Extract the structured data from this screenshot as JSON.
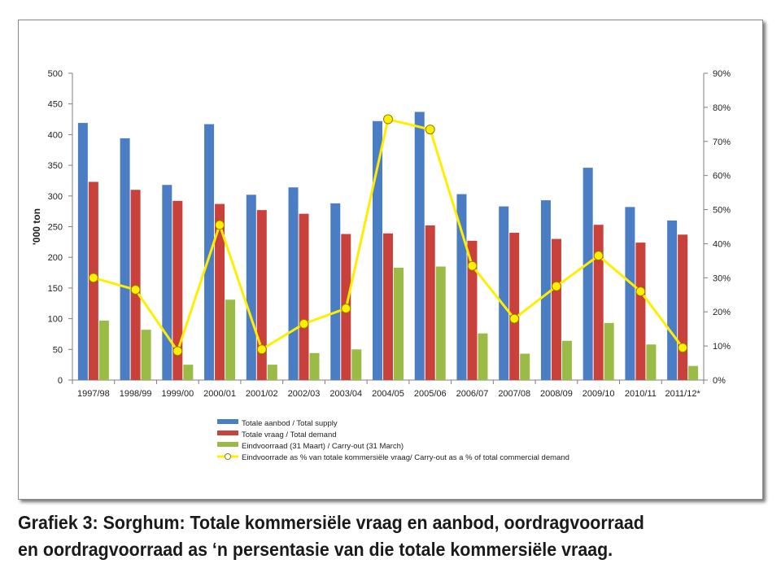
{
  "chart_data": {
    "type": "bar",
    "categories": [
      "1997/98",
      "1998/99",
      "1999/00",
      "2000/01",
      "2001/02",
      "2002/03",
      "2003/04",
      "2004/05",
      "2005/06",
      "2006/07",
      "2007/08",
      "2008/09",
      "2009/10",
      "2010/11",
      "2011/12*"
    ],
    "series": [
      {
        "name": "Totale  aanbod / Total supply",
        "kind": "bar",
        "axis": "left",
        "color": "#4a7dc3",
        "values": [
          419,
          394,
          318,
          417,
          302,
          314,
          288,
          422,
          437,
          303,
          283,
          293,
          346,
          282,
          260
        ]
      },
      {
        "name": "Totale vraag / Total  demand",
        "kind": "bar",
        "axis": "left",
        "color": "#c8413a",
        "values": [
          323,
          310,
          292,
          287,
          277,
          271,
          238,
          239,
          252,
          227,
          240,
          230,
          253,
          224,
          237
        ]
      },
      {
        "name": "Eindvoorraad (31 Maart) / Carry-out (31 March)",
        "kind": "bar",
        "axis": "left",
        "color": "#9abb45",
        "values": [
          97,
          82,
          25,
          131,
          25,
          44,
          50,
          183,
          185,
          76,
          43,
          64,
          93,
          58,
          23
        ]
      },
      {
        "name": "Eindvoorrade as % van totale kommersiële vraag/ Carry-out as a % of total commercial demand",
        "kind": "line",
        "axis": "right",
        "color": "#ffee00",
        "marker": "circle",
        "values": [
          30,
          26.5,
          8.5,
          45.5,
          9,
          16.5,
          21,
          76.5,
          73.5,
          33.5,
          18,
          27.5,
          36.5,
          26,
          9.5
        ]
      }
    ],
    "ylabel": "'000 ton",
    "ylim": [
      0,
      500
    ],
    "yticks": [
      "0",
      "50",
      "100",
      "150",
      "200",
      "250",
      "300",
      "350",
      "400",
      "450",
      "500"
    ],
    "y2lim": [
      0,
      90
    ],
    "y2ticks": [
      "0%",
      "10%",
      "20%",
      "30%",
      "40%",
      "50%",
      "60%",
      "70%",
      "80%",
      "90%"
    ],
    "grid": false,
    "legend_position": "bottom"
  },
  "caption": {
    "line1": "Grafiek 3: Sorghum: Totale kommersiële vraag en aanbod, oordragvoorraad",
    "line2": "en oordragvoorraad as ‘n persentasie van die totale kommersiële vraag."
  }
}
